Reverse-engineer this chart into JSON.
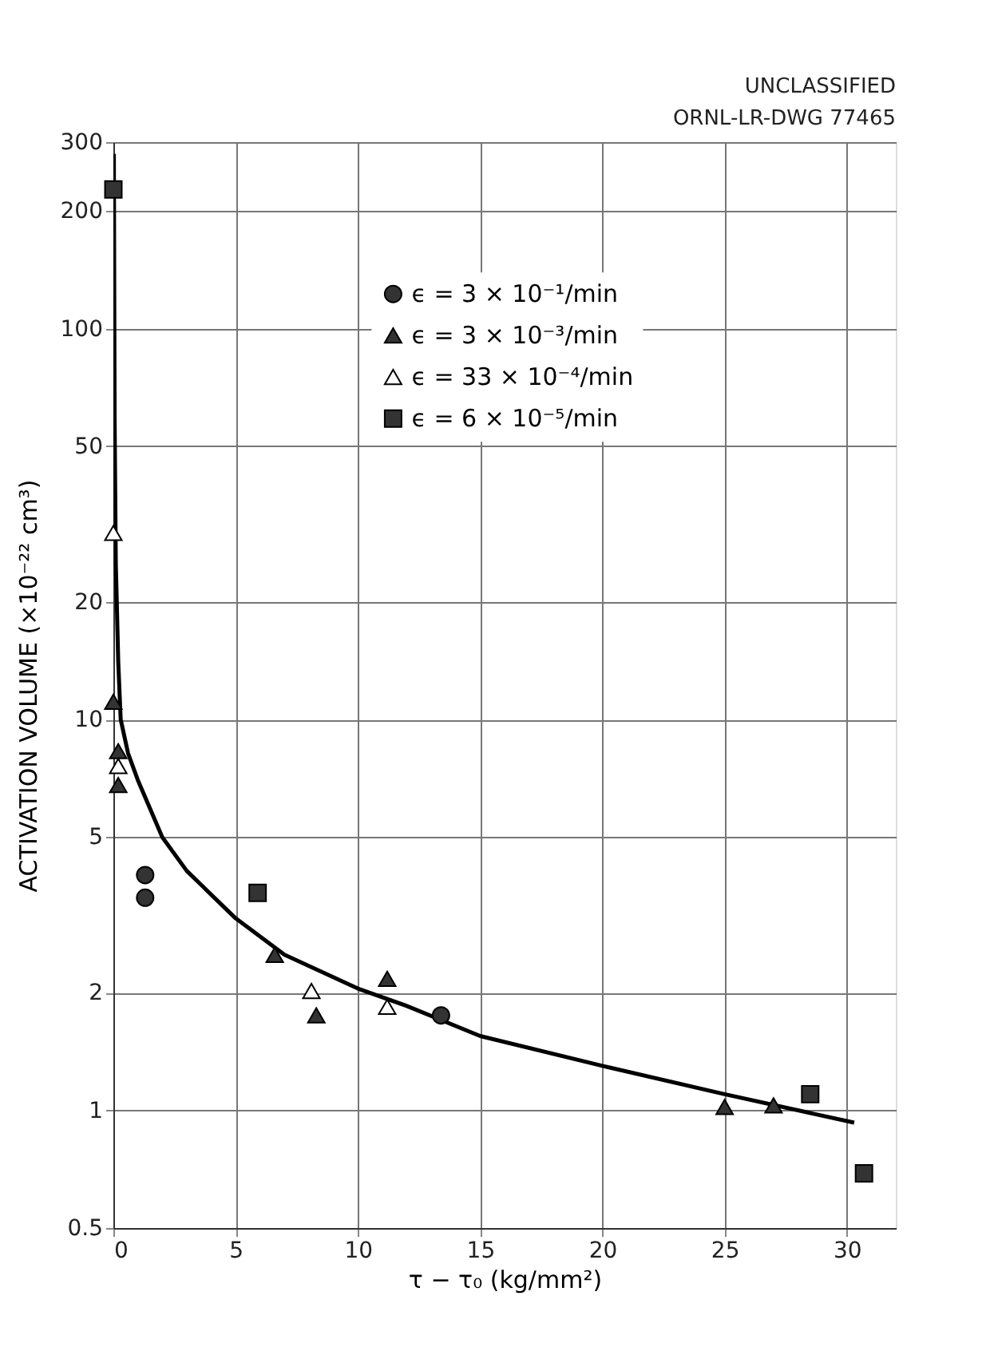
{
  "chart_data": {
    "type": "scatter",
    "xlabel": "τ − τ₀ (kg/mm²)",
    "ylabel": "ACTIVATION VOLUME (×10⁻²² cm³)",
    "annotations": [
      "UNCLASSIFIED",
      "ORNL-LR-DWG 77465"
    ],
    "xlim": [
      0,
      32
    ],
    "xticks": [
      0,
      5,
      10,
      15,
      20,
      25,
      30
    ],
    "ylim": [
      0.5,
      300
    ],
    "yticks": [
      0.5,
      1,
      2,
      5,
      10,
      20,
      50,
      100,
      200,
      300
    ],
    "log": "y",
    "grid": true,
    "legend": "top",
    "series": [
      {
        "name": "ϵ = 3 × 10⁻¹/min",
        "color": "#333333",
        "marker": "circle",
        "x": [
          1.3,
          1.3,
          13.4
        ],
        "values": [
          4.0,
          3.5,
          1.75
        ]
      },
      {
        "name": "ϵ = 3 × 10⁻³/min",
        "color": "#333333",
        "marker": "triangle",
        "x": [
          0.0,
          0.2,
          0.2,
          6.6,
          8.3,
          11.2,
          25,
          27
        ],
        "values": [
          11.1,
          8.3,
          6.8,
          2.5,
          1.75,
          2.17,
          1.02,
          1.03
        ]
      },
      {
        "name": "ϵ = 33 × 10⁻⁴/min",
        "color": "#ffffff",
        "marker": "triangle",
        "x": [
          0.0,
          0.2,
          8.1,
          11.2
        ],
        "values": [
          30,
          7.6,
          2.02,
          1.84
        ]
      },
      {
        "name": "ϵ = 6 × 10⁻⁵/min",
        "color": "#333333",
        "marker": "square",
        "x": [
          0.0,
          5.9,
          28.5,
          30.7
        ],
        "values": [
          227,
          3.6,
          1.1,
          0.69
        ]
      },
      {
        "type": "line",
        "color": "#000000",
        "marker": "none",
        "line_style": "solid",
        "x": [
          0.02,
          0.05,
          0.1,
          0.2,
          0.3,
          0.6,
          1,
          2,
          3,
          5,
          7,
          10,
          12,
          15,
          20,
          25,
          30.3
        ],
        "values": [
          280,
          60,
          25,
          14,
          10,
          8.2,
          7,
          5,
          4.1,
          3.1,
          2.5,
          2.05,
          1.85,
          1.55,
          1.3,
          1.1,
          0.93
        ]
      }
    ]
  }
}
